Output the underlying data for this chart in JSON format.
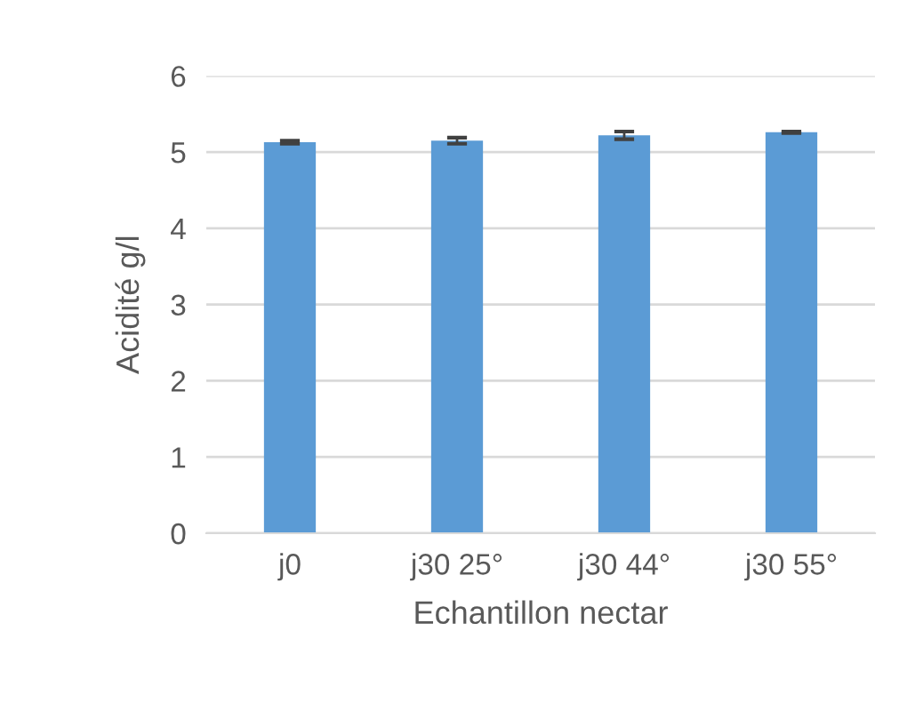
{
  "chart_data": {
    "type": "bar",
    "xlabel": "Echantillon nectar",
    "ylabel": "Acidité g/l",
    "categories": [
      "j0",
      "j30 25°",
      "j30 44°",
      "j30 55°"
    ],
    "values": [
      5.13,
      5.15,
      5.22,
      5.26
    ],
    "errors": [
      0.02,
      0.04,
      0.05,
      0.01
    ],
    "color": "#5b9bd5",
    "ylim": [
      0,
      6
    ],
    "yticks": [
      0,
      1,
      2,
      3,
      4,
      5,
      6
    ],
    "grid": "y"
  }
}
